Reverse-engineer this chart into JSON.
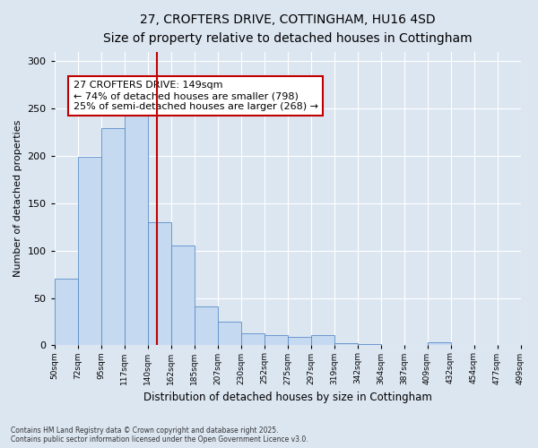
{
  "title_line1": "27, CROFTERS DRIVE, COTTINGHAM, HU16 4SD",
  "title_line2": "Size of property relative to detached houses in Cottingham",
  "xlabel": "Distribution of detached houses by size in Cottingham",
  "ylabel": "Number of detached properties",
  "annotation_title": "27 CROFTERS DRIVE: 149sqm",
  "annotation_line2": "← 74% of detached houses are smaller (798)",
  "annotation_line3": "25% of semi-detached houses are larger (268) →",
  "footnote1": "Contains HM Land Registry data © Crown copyright and database right 2025.",
  "footnote2": "Contains public sector information licensed under the Open Government Licence v3.0.",
  "bin_labels": [
    "50sqm",
    "72sqm",
    "95sqm",
    "117sqm",
    "140sqm",
    "162sqm",
    "185sqm",
    "207sqm",
    "230sqm",
    "252sqm",
    "275sqm",
    "297sqm",
    "319sqm",
    "342sqm",
    "364sqm",
    "387sqm",
    "409sqm",
    "432sqm",
    "454sqm",
    "477sqm",
    "499sqm"
  ],
  "hist_values": [
    70,
    199,
    229,
    243,
    130,
    105,
    41,
    25,
    13,
    11,
    9,
    11,
    2,
    1,
    0,
    0,
    3,
    0,
    0,
    0
  ],
  "num_bins": 20,
  "property_bin": 4,
  "property_label": "149sqm",
  "bar_color": "#c5d9f1",
  "bar_edge_color": "#5b8dc8",
  "vline_color": "#c00000",
  "background_color": "#dce6f1",
  "plot_bg_color": "#dce6f1",
  "ylim": [
    0,
    310
  ],
  "yticks": [
    0,
    50,
    100,
    150,
    200,
    250,
    300
  ],
  "title_fontsize": 10,
  "subtitle_fontsize": 9,
  "annotation_box_facecolor": "#ffffff",
  "annotation_box_edgecolor": "#c00000",
  "annotation_fontsize": 8
}
